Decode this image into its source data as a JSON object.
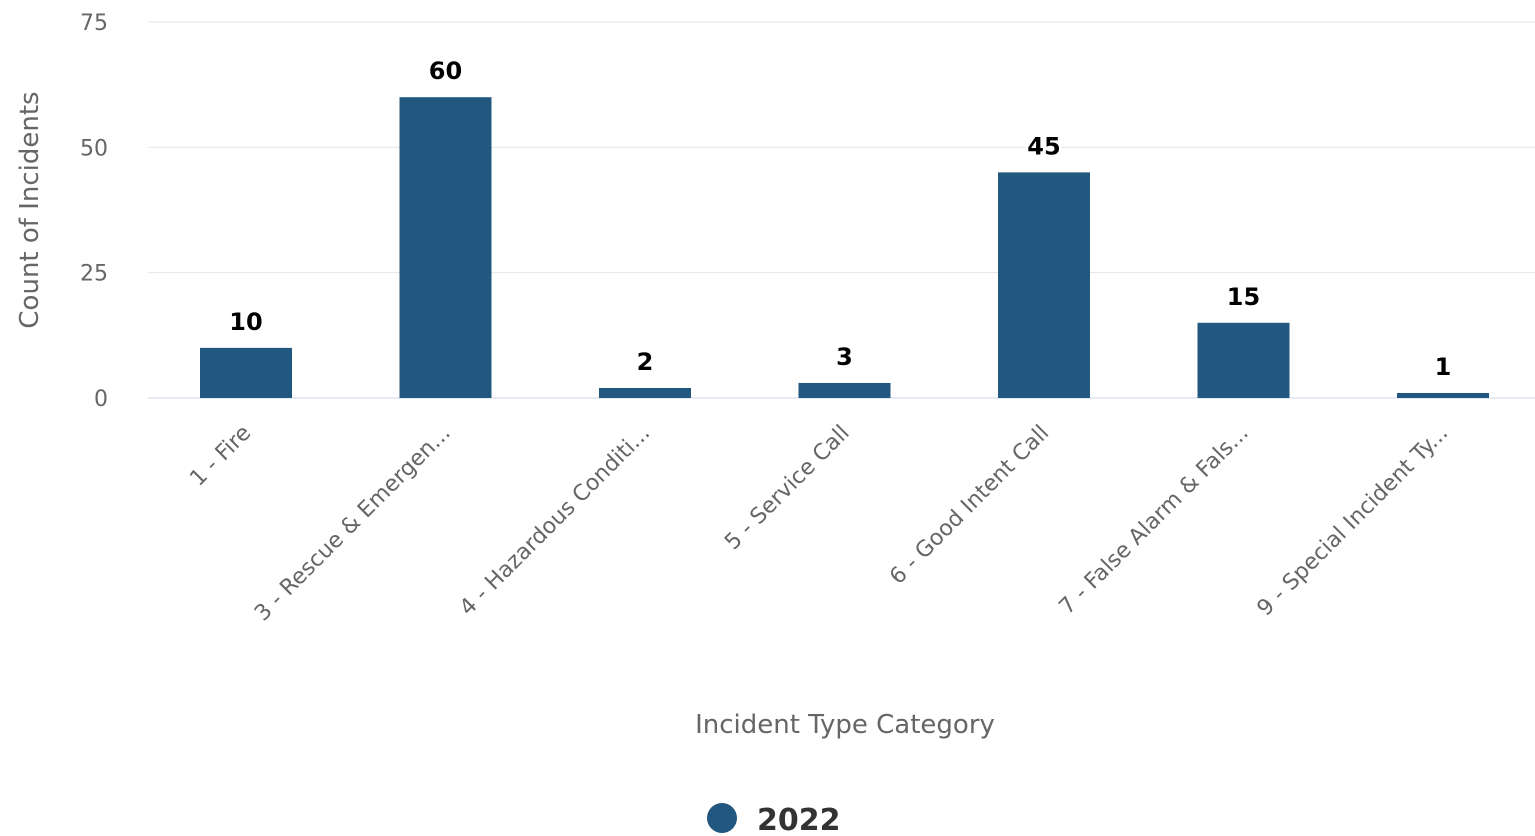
{
  "chart_data": {
    "type": "bar",
    "title": "",
    "xlabel": "Incident Type Category",
    "ylabel": "Count of Incidents",
    "ylim": [
      0,
      75
    ],
    "yticks": [
      0,
      25,
      50,
      75
    ],
    "grid": true,
    "legend_position": "bottom-center",
    "categories": [
      "1 - Fire",
      "3 - Rescue & Emergen...",
      "4 - Hazardous Conditi...",
      "5 - Service Call",
      "6 - Good Intent Call",
      "7 - False Alarm & Fals...",
      "9 - Special Incident Ty..."
    ],
    "series": [
      {
        "name": "2022",
        "color": "#22577f",
        "values": [
          10,
          60,
          2,
          3,
          45,
          15,
          1
        ]
      }
    ]
  }
}
